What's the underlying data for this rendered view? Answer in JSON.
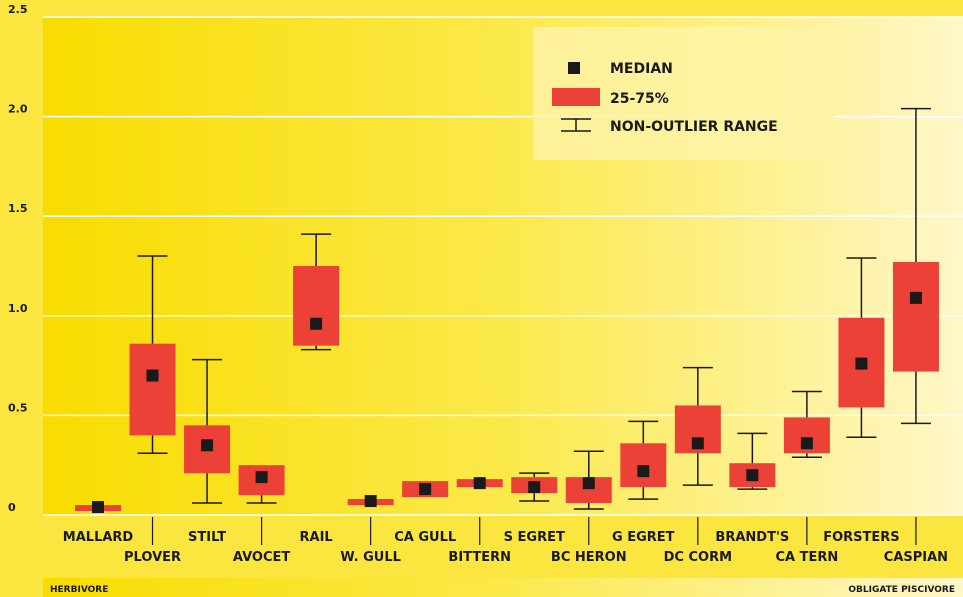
{
  "chart_data": {
    "type": "box",
    "categories": [
      "MALLARD",
      "PLOVER",
      "STILT",
      "AVOCET",
      "RAIL",
      "W. GULL",
      "CA GULL",
      "BITTERN",
      "S EGRET",
      "BC HERON",
      "G EGRET",
      "DC CORM",
      "BRANDT'S",
      "CA TERN",
      "FORSTERS",
      "CASPIAN"
    ],
    "median": [
      0.04,
      0.7,
      0.35,
      0.19,
      0.96,
      0.07,
      0.13,
      0.16,
      0.14,
      0.16,
      0.22,
      0.36,
      0.2,
      0.36,
      0.76,
      1.09
    ],
    "q1": [
      0.02,
      0.4,
      0.21,
      0.1,
      0.85,
      0.05,
      0.09,
      0.14,
      0.11,
      0.06,
      0.14,
      0.31,
      0.14,
      0.31,
      0.54,
      0.72
    ],
    "q3": [
      0.05,
      0.86,
      0.45,
      0.25,
      1.25,
      0.08,
      0.17,
      0.18,
      0.19,
      0.19,
      0.36,
      0.55,
      0.26,
      0.49,
      0.99,
      1.27
    ],
    "low": [
      null,
      0.31,
      0.06,
      0.06,
      0.83,
      null,
      null,
      null,
      0.07,
      0.03,
      0.08,
      0.15,
      0.13,
      0.29,
      0.39,
      0.46
    ],
    "high": [
      null,
      1.3,
      0.78,
      null,
      1.41,
      null,
      null,
      null,
      0.21,
      0.32,
      0.47,
      0.74,
      0.41,
      0.62,
      1.29,
      2.04
    ],
    "legend": {
      "median": "MEDIAN",
      "box": "25-75%",
      "range": "NON-OUTLIER RANGE"
    },
    "box_color": "#ec4136",
    "median_color": "#1a1a1a",
    "ylim": [
      0,
      2.5
    ],
    "yticks": [
      0,
      0.5,
      {
        "value": 1,
        "label": "1.0"
      },
      1.5,
      {
        "value": 2,
        "label": "2.0"
      },
      2.5
    ],
    "grid": true,
    "scale_labels": {
      "left": "HERBIVORE",
      "right": "OBLIGATE PISCIVORE"
    }
  }
}
